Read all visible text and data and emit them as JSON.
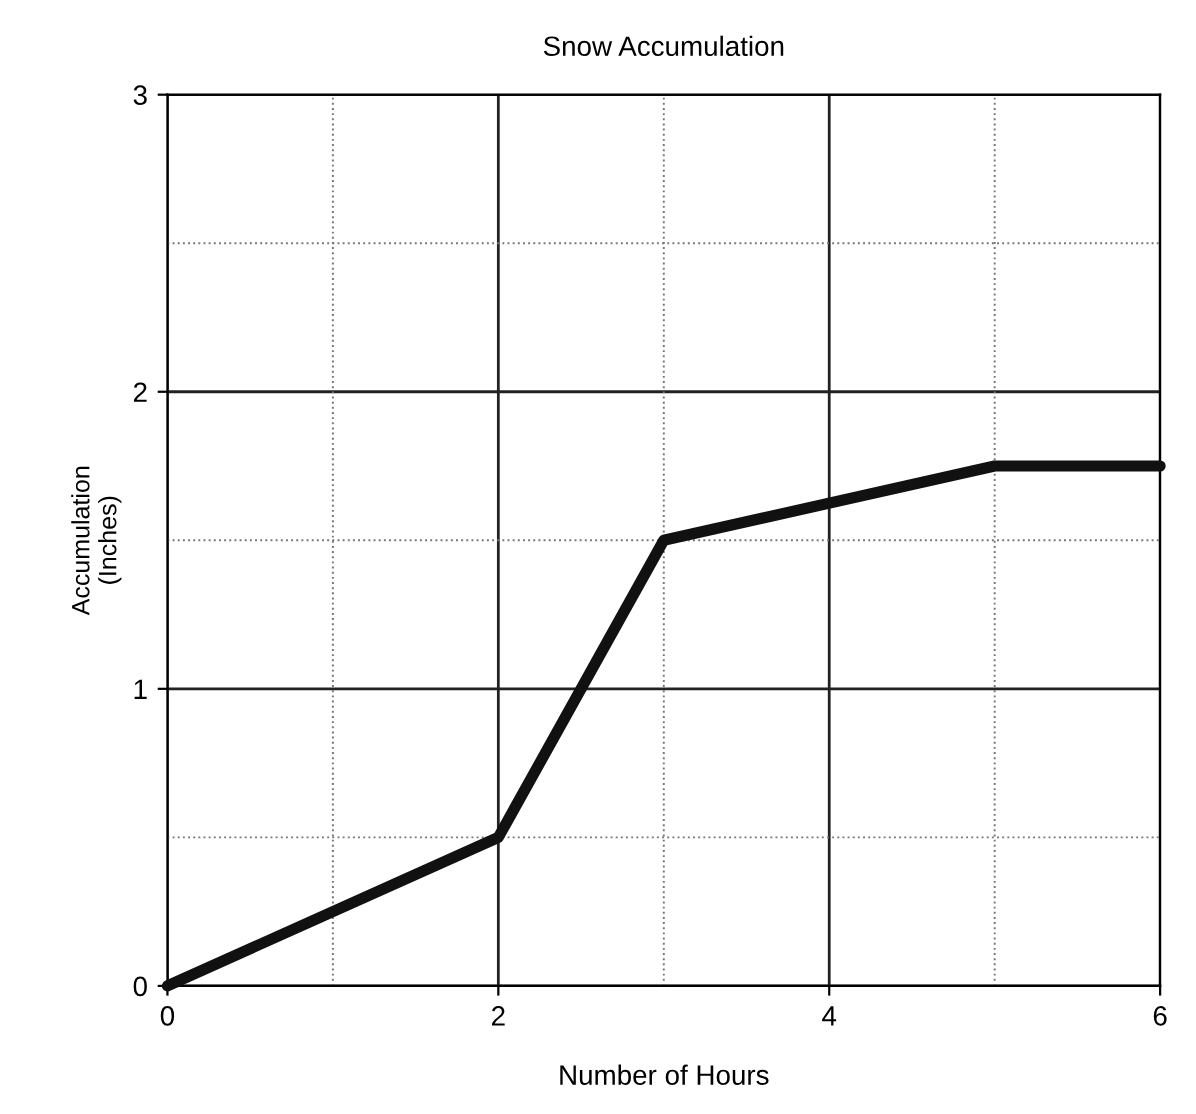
{
  "chart_data": {
    "type": "line",
    "title": "Snow Accumulation",
    "xlabel": "Number of Hours",
    "ylabel": "Accumulation\n(Inches)",
    "x": [
      0,
      2,
      3,
      5,
      6
    ],
    "series": [
      {
        "color": "#111111",
        "values": [
          0,
          0.5,
          1.5,
          1.75,
          1.75
        ]
      }
    ],
    "xlim": [
      0,
      6
    ],
    "ylim": [
      0,
      3
    ],
    "xticks": [
      0,
      2,
      4,
      6
    ],
    "yticks": [
      0,
      1,
      2,
      3
    ],
    "grid": true,
    "line_style": "solid"
  }
}
